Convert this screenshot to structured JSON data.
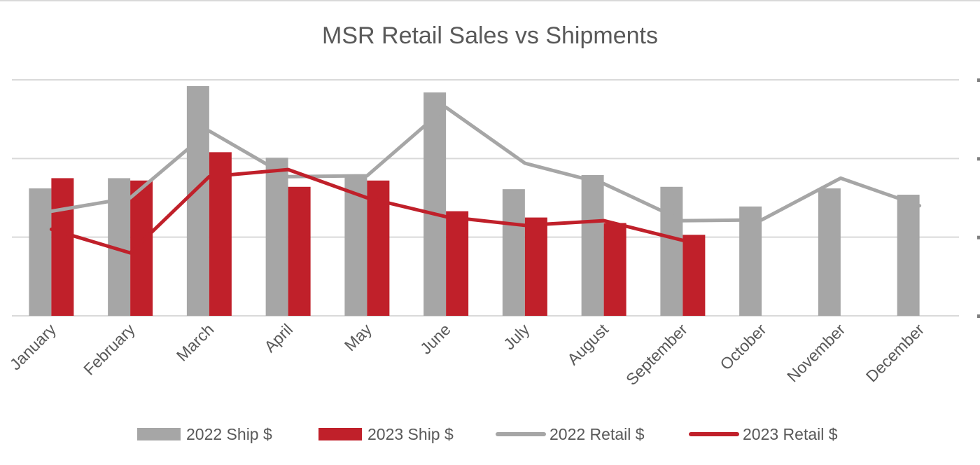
{
  "chart_data": {
    "type": "bar",
    "title": "MSR Retail Sales vs Shipments",
    "categories": [
      "January",
      "February",
      "March",
      "April",
      "May",
      "June",
      "July",
      "August",
      "September",
      "October",
      "November",
      "December"
    ],
    "ylim": [
      0,
      3
    ],
    "gridlines": [
      0,
      1,
      2,
      3
    ],
    "grid": true,
    "legend_position": "bottom",
    "series": [
      {
        "name": "2022 Ship $",
        "kind": "bar",
        "color": "#a6a6a6",
        "values": [
          1.62,
          1.75,
          2.92,
          2.01,
          1.78,
          2.84,
          1.61,
          1.79,
          1.64,
          1.39,
          1.62,
          1.54
        ]
      },
      {
        "name": "2023 Ship $",
        "kind": "bar",
        "color": "#c0202a",
        "values": [
          1.75,
          1.72,
          2.08,
          1.64,
          1.72,
          1.33,
          1.25,
          1.18,
          1.03,
          null,
          null,
          null
        ]
      },
      {
        "name": "2022 Retail $",
        "kind": "line",
        "color": "#a6a6a6",
        "values": [
          1.33,
          1.5,
          2.35,
          1.77,
          1.78,
          2.65,
          1.94,
          1.68,
          1.21,
          1.22,
          1.75,
          1.4
        ]
      },
      {
        "name": "2023 Retail $",
        "kind": "line",
        "color": "#c0202a",
        "values": [
          1.1,
          0.8,
          1.77,
          1.86,
          1.5,
          1.26,
          1.15,
          1.21,
          0.96,
          null,
          null,
          null
        ]
      }
    ]
  }
}
